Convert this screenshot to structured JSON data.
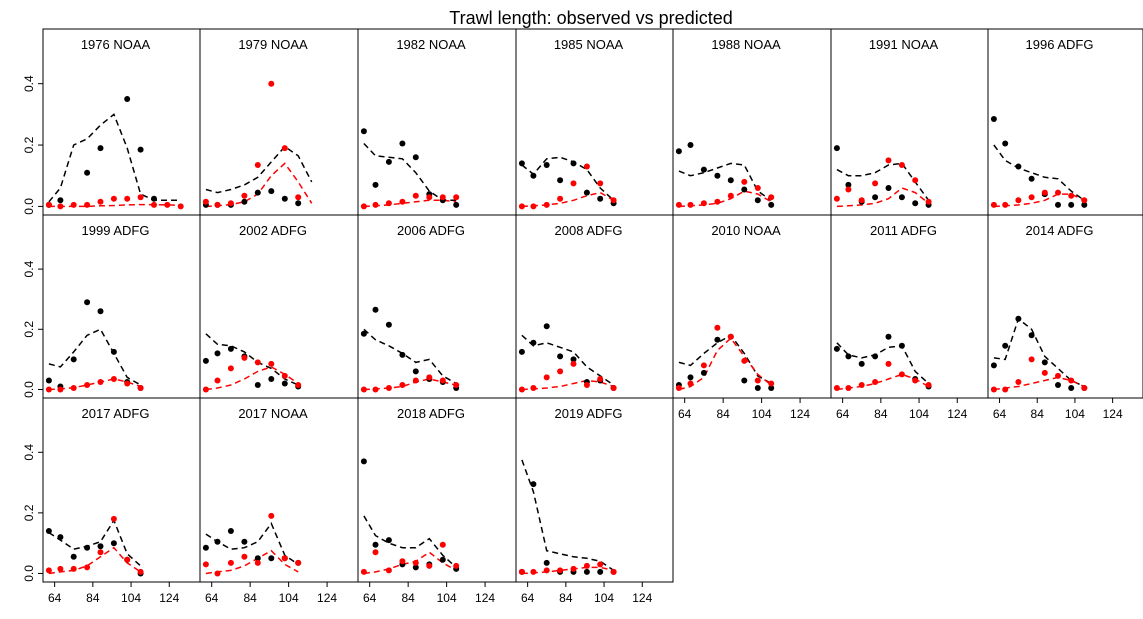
{
  "chart_data": {
    "type": "scatter",
    "title": "Trawl length: observed vs predicted",
    "xlabel": "",
    "ylabel": "",
    "xlim": [
      60,
      138
    ],
    "ylim": [
      -0.015,
      0.5
    ],
    "x_ticks": [
      64,
      84,
      104,
      124
    ],
    "y_ticks": [
      0.0,
      0.2,
      0.4
    ],
    "x_tick_labels": [
      "64",
      "84",
      "104",
      "124"
    ],
    "y_tick_labels": [
      "0.0",
      "0.2",
      "0.4"
    ],
    "x": [
      61,
      67,
      74,
      81,
      88,
      95,
      102,
      109,
      116,
      123,
      130,
      137
    ],
    "colors": {
      "series1": "#000000",
      "series2": "#ff0000"
    },
    "series_styles": {
      "observed": "filled circles",
      "predicted": "dashed line"
    },
    "panels": [
      {
        "label": "1976 NOAA",
        "obs_black": [
          0.005,
          0.02,
          null,
          0.11,
          0.19,
          null,
          0.35,
          0.185,
          0.025,
          null,
          null,
          null
        ],
        "obs_red": [
          0.005,
          0.0,
          0.005,
          0.005,
          0.015,
          0.025,
          0.025,
          0.03,
          0.005,
          0.005,
          0.0,
          null
        ],
        "pred_black": [
          0.015,
          0.06,
          0.2,
          0.22,
          0.265,
          0.3,
          0.19,
          0.04,
          0.02,
          0.02,
          0.02,
          null
        ],
        "pred_red": [
          0.0,
          0.0,
          0.0,
          0.0,
          0.002,
          0.003,
          0.005,
          0.006,
          0.006,
          0.005,
          0.004,
          null
        ]
      },
      {
        "label": "1979 NOAA",
        "obs_black": [
          0.005,
          0.005,
          0.005,
          0.015,
          0.045,
          0.05,
          0.025,
          0.01,
          null,
          null,
          null,
          null
        ],
        "obs_red": [
          0.015,
          0.005,
          0.01,
          0.035,
          0.135,
          0.4,
          0.19,
          0.03,
          null,
          null,
          null,
          null
        ],
        "pred_black": [
          0.055,
          0.045,
          0.055,
          0.07,
          0.095,
          0.145,
          0.195,
          0.165,
          0.08,
          null,
          null,
          null
        ],
        "pred_red": [
          0.0,
          0.002,
          0.006,
          0.015,
          0.04,
          0.1,
          0.14,
          0.08,
          0.01,
          null,
          null,
          null
        ]
      },
      {
        "label": "1982 NOAA",
        "obs_black": [
          0.245,
          0.07,
          0.145,
          0.205,
          0.16,
          0.04,
          0.02,
          0.005,
          null,
          null,
          null,
          null
        ],
        "obs_red": [
          0.0,
          0.005,
          0.01,
          0.015,
          0.035,
          0.03,
          0.03,
          0.03,
          null,
          null,
          null,
          null
        ],
        "pred_black": [
          0.205,
          0.165,
          0.16,
          0.155,
          0.11,
          0.05,
          0.02,
          0.02,
          null,
          null,
          null,
          null
        ],
        "pred_red": [
          0.0,
          0.002,
          0.005,
          0.01,
          0.015,
          0.02,
          0.02,
          0.015,
          null,
          null,
          null,
          null
        ]
      },
      {
        "label": "1985 NOAA",
        "obs_black": [
          0.14,
          0.1,
          0.135,
          0.085,
          0.14,
          0.045,
          0.025,
          0.01,
          null,
          null,
          null,
          null
        ],
        "obs_red": [
          0.0,
          0.0,
          0.005,
          0.025,
          0.075,
          0.13,
          0.075,
          0.02,
          null,
          null,
          null,
          null
        ],
        "pred_black": [
          0.135,
          0.105,
          0.155,
          0.16,
          0.145,
          0.12,
          0.06,
          0.02,
          null,
          null,
          null,
          null
        ],
        "pred_red": [
          0.0,
          0.002,
          0.005,
          0.01,
          0.02,
          0.035,
          0.045,
          0.02,
          null,
          null,
          null,
          null
        ]
      },
      {
        "label": "1988 NOAA",
        "obs_black": [
          0.18,
          0.2,
          0.12,
          0.1,
          0.085,
          0.055,
          0.02,
          0.005,
          null,
          null,
          null,
          null
        ],
        "obs_red": [
          0.005,
          0.005,
          0.01,
          0.015,
          0.035,
          0.08,
          0.06,
          0.03,
          null,
          null,
          null,
          null
        ],
        "pred_black": [
          0.115,
          0.1,
          0.11,
          0.125,
          0.14,
          0.135,
          0.05,
          0.02,
          null,
          null,
          null,
          null
        ],
        "pred_red": [
          0.0,
          0.002,
          0.005,
          0.01,
          0.025,
          0.05,
          0.04,
          0.015,
          null,
          null,
          null,
          null
        ]
      },
      {
        "label": "1991 NOAA",
        "obs_black": [
          0.19,
          0.07,
          0.015,
          0.03,
          0.06,
          0.03,
          0.01,
          0.005,
          null,
          null,
          null,
          null
        ],
        "obs_red": [
          0.025,
          0.055,
          0.02,
          0.075,
          0.15,
          0.135,
          0.085,
          0.015,
          null,
          null,
          null,
          null
        ],
        "pred_black": [
          0.12,
          0.1,
          0.1,
          0.11,
          0.135,
          0.14,
          0.08,
          0.02,
          null,
          null,
          null,
          null
        ],
        "pred_red": [
          0.0,
          0.002,
          0.005,
          0.01,
          0.025,
          0.06,
          0.045,
          0.01,
          null,
          null,
          null,
          null
        ]
      },
      {
        "label": "1996 ADFG",
        "obs_black": [
          0.285,
          0.205,
          0.13,
          0.09,
          0.04,
          0.005,
          0.005,
          0.005,
          null,
          null,
          null,
          null
        ],
        "obs_red": [
          0.005,
          0.005,
          0.02,
          0.03,
          0.045,
          0.045,
          0.035,
          0.02,
          null,
          null,
          null,
          null
        ],
        "pred_black": [
          0.2,
          0.15,
          0.125,
          0.11,
          0.095,
          0.09,
          0.05,
          0.02,
          null,
          null,
          null,
          null
        ],
        "pred_red": [
          0.0,
          0.002,
          0.005,
          0.01,
          0.02,
          0.04,
          0.04,
          0.02,
          null,
          null,
          null,
          null
        ]
      },
      {
        "label": "1999 ADFG",
        "obs_black": [
          0.03,
          0.01,
          0.1,
          0.29,
          0.26,
          0.125,
          0.025,
          0.005,
          null,
          null,
          null,
          null
        ],
        "obs_red": [
          0.0,
          0.0,
          0.005,
          0.015,
          0.025,
          0.035,
          0.02,
          0.005,
          null,
          null,
          null,
          null
        ],
        "pred_black": [
          0.085,
          0.075,
          0.125,
          0.18,
          0.2,
          0.12,
          0.04,
          0.015,
          null,
          null,
          null,
          null
        ],
        "pred_red": [
          0.0,
          0.002,
          0.006,
          0.015,
          0.025,
          0.035,
          0.025,
          0.01,
          null,
          null,
          null,
          null
        ]
      },
      {
        "label": "2002 ADFG",
        "obs_black": [
          0.095,
          0.12,
          0.135,
          0.11,
          0.015,
          0.035,
          0.02,
          0.01,
          null,
          null,
          null,
          null
        ],
        "obs_red": [
          0.0,
          0.03,
          0.07,
          0.105,
          0.09,
          0.085,
          0.045,
          0.015,
          null,
          null,
          null,
          null
        ],
        "pred_black": [
          0.185,
          0.15,
          0.145,
          0.125,
          0.09,
          0.07,
          0.035,
          0.015,
          null,
          null,
          null,
          null
        ],
        "pred_red": [
          0.0,
          0.005,
          0.015,
          0.035,
          0.06,
          0.075,
          0.05,
          0.02,
          null,
          null,
          null,
          null
        ]
      },
      {
        "label": "2006 ADFG",
        "obs_black": [
          0.185,
          0.265,
          0.215,
          0.115,
          0.06,
          0.035,
          0.025,
          0.005,
          null,
          null,
          null,
          null
        ],
        "obs_red": [
          0.0,
          0.0,
          0.005,
          0.015,
          0.03,
          0.04,
          0.03,
          0.015,
          null,
          null,
          null,
          null
        ],
        "pred_black": [
          0.2,
          0.165,
          0.145,
          0.12,
          0.09,
          0.1,
          0.045,
          0.02,
          null,
          null,
          null,
          null
        ],
        "pred_red": [
          0.0,
          0.002,
          0.005,
          0.01,
          0.025,
          0.035,
          0.025,
          0.015,
          null,
          null,
          null,
          null
        ]
      },
      {
        "label": "2008 ADFG",
        "obs_black": [
          0.125,
          0.155,
          0.21,
          0.11,
          0.1,
          0.025,
          0.03,
          0.005,
          null,
          null,
          null,
          null
        ],
        "obs_red": [
          0.0,
          0.005,
          0.04,
          0.06,
          0.085,
          0.015,
          0.035,
          0.005,
          null,
          null,
          null,
          null
        ],
        "pred_black": [
          0.18,
          0.145,
          0.155,
          0.14,
          0.125,
          0.075,
          0.045,
          0.015,
          null,
          null,
          null,
          null
        ],
        "pred_red": [
          0.0,
          0.002,
          0.005,
          0.01,
          0.02,
          0.03,
          0.025,
          0.01,
          null,
          null,
          null,
          null
        ]
      },
      {
        "label": "2010 NOAA",
        "obs_black": [
          0.015,
          0.04,
          0.055,
          0.165,
          0.175,
          0.03,
          0.005,
          0.005,
          null,
          null,
          null,
          null
        ],
        "obs_red": [
          0.005,
          0.02,
          0.08,
          0.205,
          0.175,
          0.095,
          0.03,
          0.02,
          null,
          null,
          null,
          null
        ],
        "pred_black": [
          0.09,
          0.08,
          0.12,
          0.155,
          0.18,
          0.12,
          0.045,
          0.02,
          null,
          null,
          null,
          null
        ],
        "pred_red": [
          0.0,
          0.01,
          0.04,
          0.13,
          0.17,
          0.11,
          0.05,
          0.015,
          null,
          null,
          null,
          null
        ]
      },
      {
        "label": "2011 ADFG",
        "obs_black": [
          0.135,
          0.11,
          0.085,
          0.11,
          0.175,
          0.145,
          0.035,
          0.01,
          null,
          null,
          null,
          null
        ],
        "obs_red": [
          0.005,
          0.005,
          0.015,
          0.025,
          0.085,
          0.05,
          0.03,
          0.015,
          null,
          null,
          null,
          null
        ],
        "pred_black": [
          0.155,
          0.115,
          0.105,
          0.115,
          0.14,
          0.145,
          0.06,
          0.02,
          null,
          null,
          null,
          null
        ],
        "pred_red": [
          0.0,
          0.005,
          0.01,
          0.02,
          0.035,
          0.05,
          0.035,
          0.01,
          null,
          null,
          null,
          null
        ]
      },
      {
        "label": "2014 ADFG",
        "obs_black": [
          0.08,
          0.145,
          0.235,
          0.18,
          0.09,
          0.015,
          0.005,
          0.005,
          null,
          null,
          null,
          null
        ],
        "obs_red": [
          0.0,
          0.0,
          0.025,
          0.1,
          0.055,
          0.045,
          0.03,
          0.005,
          null,
          null,
          null,
          null
        ],
        "pred_black": [
          0.105,
          0.1,
          0.235,
          0.2,
          0.11,
          0.07,
          0.03,
          0.01,
          null,
          null,
          null,
          null
        ],
        "pred_red": [
          0.0,
          0.005,
          0.01,
          0.02,
          0.03,
          0.04,
          0.03,
          0.01,
          null,
          null,
          null,
          null
        ]
      },
      {
        "label": "2017 ADFG",
        "obs_black": [
          0.14,
          0.12,
          0.055,
          0.085,
          0.09,
          0.1,
          0.045,
          0.0,
          null,
          null,
          null,
          null
        ],
        "obs_red": [
          0.01,
          0.015,
          0.015,
          0.02,
          0.07,
          0.18,
          0.045,
          0.005,
          null,
          null,
          null,
          null
        ],
        "pred_black": [
          0.135,
          0.11,
          0.08,
          0.09,
          0.105,
          0.175,
          0.065,
          0.025,
          null,
          null,
          null,
          null
        ],
        "pred_red": [
          0.0,
          0.005,
          0.01,
          0.025,
          0.055,
          0.085,
          0.035,
          0.005,
          null,
          null,
          null,
          null
        ]
      },
      {
        "label": "2017 NOAA",
        "obs_black": [
          0.085,
          0.105,
          0.14,
          0.105,
          0.05,
          0.05,
          0.05,
          0.035,
          null,
          null,
          null,
          null
        ],
        "obs_red": [
          0.03,
          0.0,
          0.035,
          0.055,
          0.035,
          0.19,
          0.05,
          0.035,
          null,
          null,
          null,
          null
        ],
        "pred_black": [
          0.13,
          0.105,
          0.08,
          0.085,
          0.105,
          0.165,
          0.06,
          0.03,
          null,
          null,
          null,
          null
        ],
        "pred_red": [
          0.0,
          0.005,
          0.01,
          0.025,
          0.05,
          0.075,
          0.03,
          0.005,
          null,
          null,
          null,
          null
        ]
      },
      {
        "label": "2018 ADFG",
        "obs_black": [
          0.37,
          0.095,
          0.11,
          0.03,
          0.02,
          0.03,
          0.045,
          0.015,
          null,
          null,
          null,
          null
        ],
        "obs_red": [
          0.005,
          0.07,
          0.01,
          0.04,
          0.035,
          0.025,
          0.095,
          0.025,
          null,
          null,
          null,
          null
        ],
        "pred_black": [
          0.19,
          0.125,
          0.1,
          0.085,
          0.085,
          0.115,
          0.06,
          0.02,
          null,
          null,
          null,
          null
        ],
        "pred_red": [
          0.0,
          0.005,
          0.015,
          0.03,
          0.04,
          0.07,
          0.035,
          0.01,
          null,
          null,
          null,
          null
        ]
      },
      {
        "label": "2019 ADFG",
        "obs_black": [
          0.005,
          0.295,
          0.035,
          0.005,
          0.005,
          0.005,
          0.005,
          0.005,
          null,
          null,
          null,
          null
        ],
        "obs_red": [
          0.005,
          0.005,
          0.01,
          0.01,
          0.015,
          0.025,
          0.03,
          0.005,
          null,
          null,
          null,
          null
        ],
        "pred_black": [
          0.375,
          0.27,
          0.075,
          0.065,
          0.055,
          0.05,
          0.04,
          0.01,
          null,
          null,
          null,
          null
        ],
        "pred_red": [
          0.0,
          0.002,
          0.005,
          0.01,
          0.015,
          0.02,
          0.02,
          0.01,
          null,
          null,
          null,
          null
        ]
      }
    ]
  }
}
